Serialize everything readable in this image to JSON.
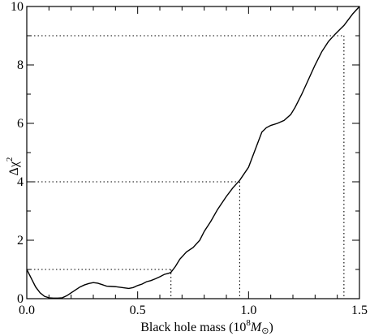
{
  "chart_data": {
    "type": "line",
    "xlabel": "Black hole mass (10^8 M_⊙)",
    "xlabel_parts": {
      "prefix": "Black hole mass (10",
      "exponent": "8",
      "symbol": "M",
      "subscript": "⊙",
      "suffix": ")"
    },
    "ylabel": "Δχ²",
    "ylabel_parts": {
      "base": "Δχ",
      "exponent": "2"
    },
    "xlim": [
      0.0,
      1.5
    ],
    "ylim": [
      0,
      10
    ],
    "xticks": [
      0.0,
      0.5,
      1.0,
      1.5
    ],
    "xtick_labels": [
      "0.0",
      "0.5",
      "1.0",
      "1.5"
    ],
    "yticks": [
      0,
      2,
      4,
      6,
      8,
      10
    ],
    "ytick_labels": [
      "0",
      "2",
      "4",
      "6",
      "8",
      "10"
    ],
    "x_minor_step": 0.1,
    "y_minor_step": 1,
    "grid": false,
    "series": [
      {
        "x": [
          0.0,
          0.02,
          0.04,
          0.06,
          0.08,
          0.1,
          0.12,
          0.14,
          0.16,
          0.18,
          0.2,
          0.22,
          0.24,
          0.26,
          0.28,
          0.3,
          0.32,
          0.34,
          0.36,
          0.38,
          0.4,
          0.42,
          0.44,
          0.46,
          0.48,
          0.5,
          0.52,
          0.54,
          0.56,
          0.58,
          0.6,
          0.62,
          0.64,
          0.65,
          0.67,
          0.69,
          0.72,
          0.75,
          0.78,
          0.8,
          0.83,
          0.86,
          0.9,
          0.93,
          0.96,
          1.0,
          1.03,
          1.06,
          1.08,
          1.1,
          1.13,
          1.16,
          1.19,
          1.21,
          1.24,
          1.27,
          1.3,
          1.33,
          1.36,
          1.39,
          1.41,
          1.43,
          1.45,
          1.47,
          1.5
        ],
        "y": [
          1.0,
          0.7,
          0.4,
          0.2,
          0.08,
          0.03,
          0.02,
          0.02,
          0.03,
          0.1,
          0.2,
          0.3,
          0.4,
          0.47,
          0.52,
          0.55,
          0.53,
          0.48,
          0.43,
          0.42,
          0.41,
          0.39,
          0.37,
          0.35,
          0.38,
          0.45,
          0.5,
          0.58,
          0.62,
          0.68,
          0.75,
          0.83,
          0.87,
          0.9,
          1.1,
          1.35,
          1.6,
          1.75,
          2.0,
          2.3,
          2.65,
          3.05,
          3.5,
          3.8,
          4.05,
          4.5,
          5.1,
          5.7,
          5.85,
          5.93,
          6.0,
          6.1,
          6.3,
          6.55,
          7.0,
          7.5,
          8.0,
          8.45,
          8.8,
          9.05,
          9.2,
          9.35,
          9.55,
          9.75,
          10.0
        ]
      }
    ],
    "reference_lines": [
      {
        "y": 1,
        "x": 0.65
      },
      {
        "y": 4,
        "x": 0.96
      },
      {
        "y": 9,
        "x": 1.43
      }
    ]
  }
}
